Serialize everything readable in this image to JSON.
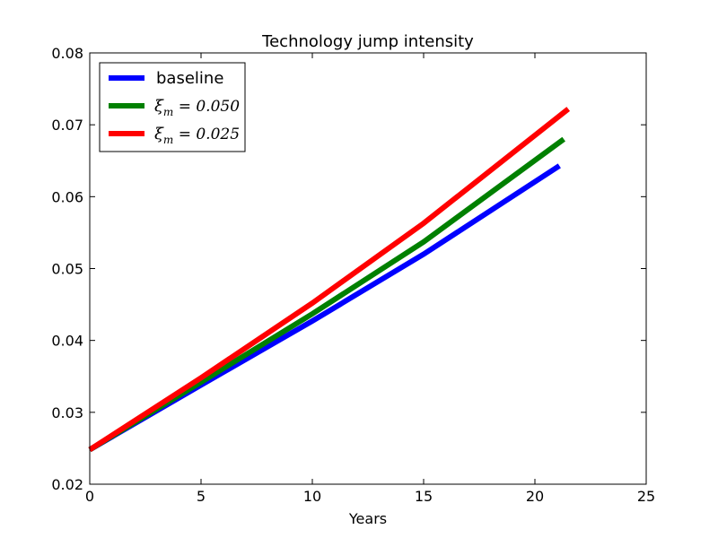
{
  "chart_data": {
    "type": "line",
    "title": "Technology jump intensity",
    "xlabel": "Years",
    "ylabel": "",
    "xlim": [
      0,
      25
    ],
    "ylim": [
      0.02,
      0.08
    ],
    "xticks": [
      0,
      5,
      10,
      15,
      20,
      25
    ],
    "xtick_labels": [
      "0",
      "5",
      "10",
      "15",
      "20",
      "25"
    ],
    "yticks": [
      0.02,
      0.03,
      0.04,
      0.05,
      0.06,
      0.07,
      0.08
    ],
    "ytick_labels": [
      "0.02",
      "0.03",
      "0.04",
      "0.05",
      "0.06",
      "0.07",
      "0.08"
    ],
    "grid": false,
    "legend_position": "top-left",
    "series": [
      {
        "name": "baseline",
        "legend_symbol": "",
        "legend_sub": "",
        "legend_rest": "",
        "color": "#0000ff",
        "x": [
          0,
          5,
          10,
          15,
          21.1
        ],
        "y": [
          0.0248,
          0.0338,
          0.0427,
          0.052,
          0.0643
        ]
      },
      {
        "name": "ξm = 0.050",
        "legend_symbol": "ξ",
        "legend_sub": "m",
        "legend_rest": " = 0.050",
        "color": "#008000",
        "x": [
          0,
          5,
          10,
          15,
          21.3
        ],
        "y": [
          0.0248,
          0.0342,
          0.0437,
          0.0537,
          0.068
        ]
      },
      {
        "name": "ξm = 0.025",
        "legend_symbol": "ξ",
        "legend_sub": "m",
        "legend_rest": " = 0.025",
        "color": "#ff0000",
        "x": [
          0,
          5,
          10,
          15,
          21.5
        ],
        "y": [
          0.0248,
          0.0348,
          0.0452,
          0.0563,
          0.0722
        ]
      }
    ]
  }
}
